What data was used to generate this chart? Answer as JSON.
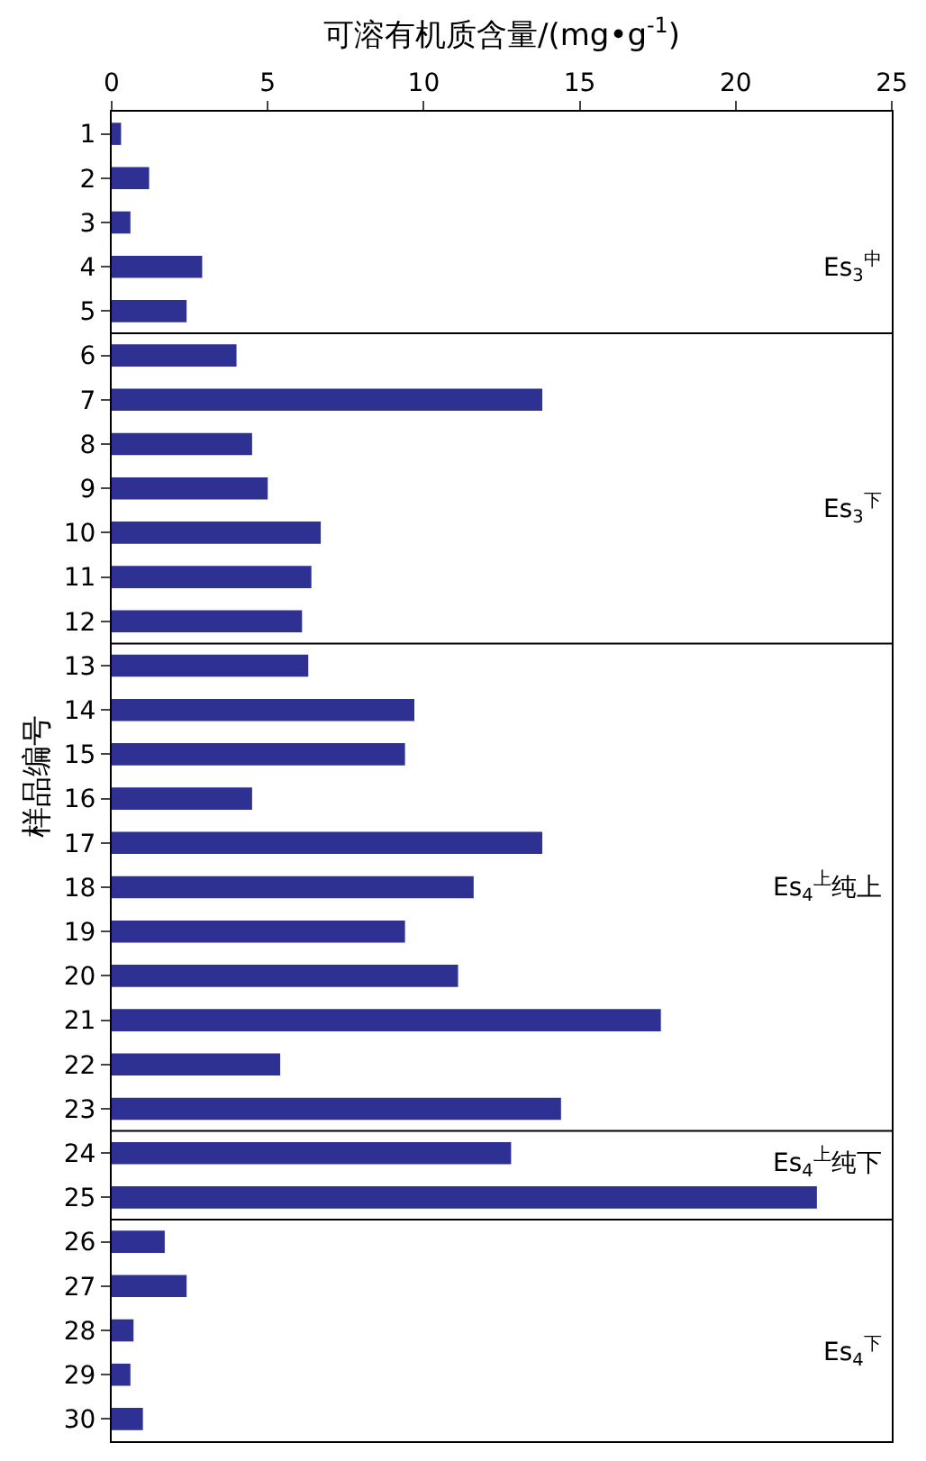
{
  "chart_data": {
    "type": "bar",
    "orientation": "horizontal",
    "xlabel": "可溶有机质含量/(mg•g$^{-1}$)",
    "ylabel": "样品编号",
    "categories": [
      "1",
      "2",
      "3",
      "4",
      "5",
      "6",
      "7",
      "8",
      "9",
      "10",
      "11",
      "12",
      "13",
      "14",
      "15",
      "16",
      "17",
      "18",
      "19",
      "20",
      "21",
      "22",
      "23",
      "24",
      "25",
      "26",
      "27",
      "28",
      "29",
      "30"
    ],
    "values": [
      0.3,
      1.2,
      0.6,
      2.9,
      2.4,
      4.0,
      13.8,
      4.5,
      5.0,
      6.7,
      6.4,
      6.1,
      6.3,
      9.7,
      9.4,
      4.5,
      13.8,
      11.6,
      9.4,
      11.1,
      17.6,
      5.4,
      14.4,
      12.8,
      22.6,
      1.7,
      2.4,
      0.7,
      0.6,
      1.0
    ],
    "color": "#2e3192",
    "xlim": [
      0,
      25
    ],
    "xticks": [
      0,
      5,
      10,
      15,
      20,
      25
    ],
    "annotations": [
      "Es$_{3}$$^{中}$",
      "Es$_{3}$$^{下}$",
      "Es$_{4}$$^{上}$纯上",
      "Es$_{4}$$^{上}$纯下",
      "Es$_{4}$$^{下}$"
    ]
  }
}
